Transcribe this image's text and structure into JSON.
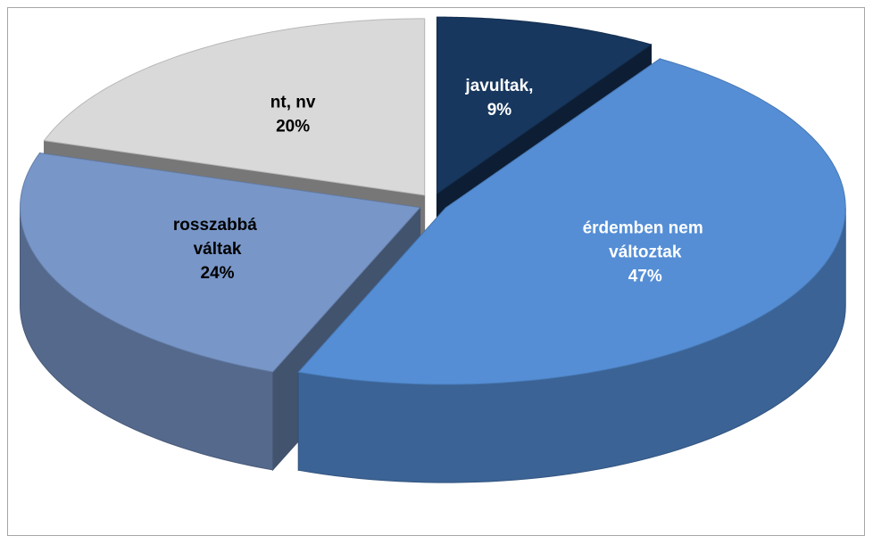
{
  "chart_data": {
    "type": "pie3d",
    "categories": [
      "javultak,",
      "érdemben nem változtak",
      "rosszabbá váltak",
      "nt, nv"
    ],
    "values": [
      9,
      47,
      24,
      20
    ],
    "value_labels": [
      "9%",
      "47%",
      "24%",
      "20%"
    ],
    "colors": [
      "#17375e",
      "#558ed5",
      "#7896c8",
      "#d9d9d9"
    ],
    "label_colors": [
      "#ffffff",
      "#ffffff",
      "#000000",
      "#000000"
    ]
  }
}
